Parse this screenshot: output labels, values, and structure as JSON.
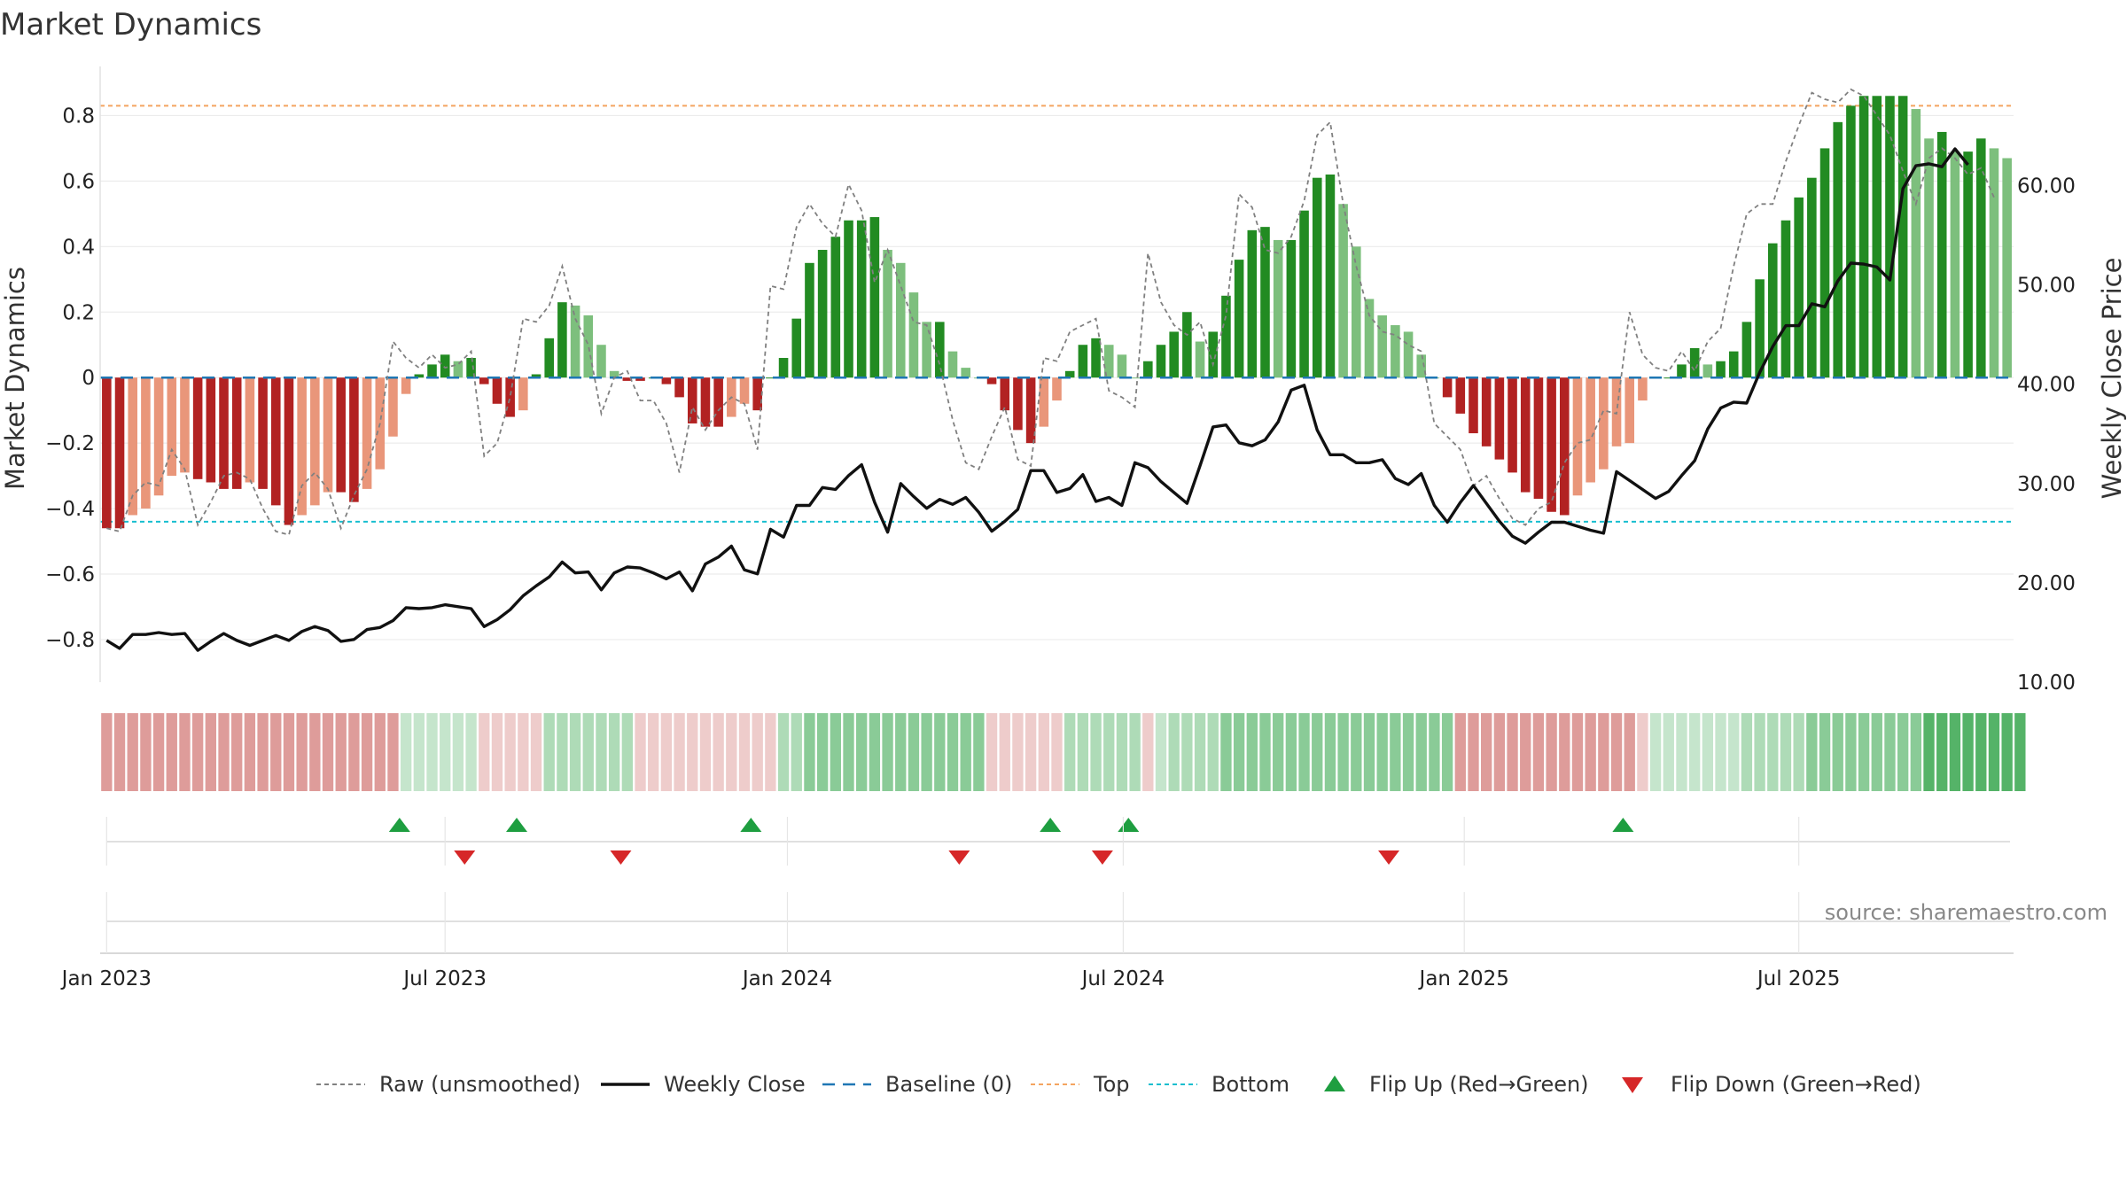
{
  "chart_data": {
    "type": "bar",
    "title": "Market Dynamics",
    "ylabel": "Market Dynamics",
    "ylabel_right": "Weekly Close Price",
    "ylim": [
      -0.93,
      0.95
    ],
    "ylim_right": [
      10,
      72
    ],
    "yticks": [
      -0.8,
      -0.6,
      -0.4,
      -0.2,
      0,
      0.2,
      0.4,
      0.6,
      0.8
    ],
    "ytick_labels": [
      "−0.8",
      "−0.6",
      "−0.4",
      "−0.2",
      "0",
      "0.2",
      "0.4",
      "0.6",
      "0.8"
    ],
    "yticks_right": [
      10,
      20,
      30,
      40,
      50,
      60
    ],
    "ytick_labels_right": [
      "10.00",
      "20.00",
      "30.00",
      "40.00",
      "50.00",
      "60.00"
    ],
    "x_tick_labels": [
      "Jan 2023",
      "Jul 2023",
      "Jan 2024",
      "Jul 2024",
      "Jan 2025",
      "Jul 2025"
    ],
    "x_tick_weeks": [
      0,
      26,
      52.3,
      78.1,
      104.3,
      130
    ],
    "top_level": 0.83,
    "bottom_level": -0.44,
    "baseline": 0,
    "smoothed": [
      -0.46,
      -0.46,
      -0.42,
      -0.4,
      -0.36,
      -0.3,
      -0.29,
      -0.31,
      -0.32,
      -0.34,
      -0.34,
      -0.32,
      -0.34,
      -0.39,
      -0.45,
      -0.42,
      -0.39,
      -0.35,
      -0.35,
      -0.38,
      -0.34,
      -0.28,
      -0.18,
      -0.05,
      0.01,
      0.04,
      0.07,
      0.05,
      0.06,
      -0.02,
      -0.08,
      -0.12,
      -0.1,
      0.01,
      0.12,
      0.23,
      0.22,
      0.19,
      0.1,
      0.02,
      -0.01,
      -0.01,
      0.0,
      -0.02,
      -0.06,
      -0.14,
      -0.15,
      -0.15,
      -0.12,
      -0.08,
      -0.1,
      0.0,
      0.06,
      0.18,
      0.35,
      0.39,
      0.43,
      0.48,
      0.48,
      0.49,
      0.39,
      0.35,
      0.26,
      0.17,
      0.17,
      0.08,
      0.03,
      0.0,
      -0.02,
      -0.1,
      -0.16,
      -0.2,
      -0.15,
      -0.07,
      0.02,
      0.1,
      0.12,
      0.1,
      0.07,
      0.0,
      0.05,
      0.1,
      0.14,
      0.2,
      0.11,
      0.14,
      0.25,
      0.36,
      0.45,
      0.46,
      0.42,
      0.42,
      0.51,
      0.61,
      0.62,
      0.53,
      0.4,
      0.24,
      0.19,
      0.16,
      0.14,
      0.07,
      0.0,
      -0.06,
      -0.11,
      -0.17,
      -0.21,
      -0.25,
      -0.29,
      -0.35,
      -0.37,
      -0.41,
      -0.42,
      -0.36,
      -0.32,
      -0.28,
      -0.21,
      -0.2,
      -0.07,
      0.0,
      0.0,
      0.04,
      0.09,
      0.04,
      0.05,
      0.08,
      0.17,
      0.3,
      0.41,
      0.48,
      0.55,
      0.61,
      0.7,
      0.78,
      0.83,
      0.86,
      0.86,
      0.86,
      0.86,
      0.82,
      0.73,
      0.75,
      0.69,
      0.69,
      0.73,
      0.7,
      0.67
    ],
    "raw": [
      -0.46,
      -0.47,
      -0.36,
      -0.32,
      -0.33,
      -0.22,
      -0.28,
      -0.45,
      -0.38,
      -0.3,
      -0.29,
      -0.31,
      -0.4,
      -0.47,
      -0.48,
      -0.33,
      -0.29,
      -0.34,
      -0.46,
      -0.36,
      -0.28,
      -0.14,
      0.11,
      0.06,
      0.03,
      0.07,
      0.03,
      0.04,
      0.08,
      -0.24,
      -0.2,
      -0.06,
      0.18,
      0.17,
      0.22,
      0.34,
      0.18,
      0.1,
      -0.11,
      0.0,
      0.02,
      -0.07,
      -0.07,
      -0.14,
      -0.29,
      -0.09,
      -0.16,
      -0.1,
      -0.06,
      -0.08,
      -0.22,
      0.28,
      0.27,
      0.46,
      0.53,
      0.47,
      0.43,
      0.59,
      0.51,
      0.29,
      0.39,
      0.28,
      0.17,
      0.16,
      0.04,
      -0.13,
      -0.26,
      -0.28,
      -0.18,
      -0.09,
      -0.25,
      -0.27,
      0.06,
      0.05,
      0.14,
      0.16,
      0.18,
      -0.04,
      -0.06,
      -0.09,
      0.38,
      0.23,
      0.16,
      0.13,
      0.17,
      0.04,
      0.19,
      0.56,
      0.52,
      0.39,
      0.38,
      0.43,
      0.54,
      0.74,
      0.78,
      0.53,
      0.34,
      0.19,
      0.14,
      0.13,
      0.1,
      0.08,
      -0.14,
      -0.18,
      -0.22,
      -0.33,
      -0.3,
      -0.37,
      -0.43,
      -0.45,
      -0.4,
      -0.38,
      -0.26,
      -0.2,
      -0.19,
      -0.1,
      -0.11,
      0.2,
      0.07,
      0.03,
      0.02,
      0.08,
      0.02,
      0.11,
      0.15,
      0.34,
      0.5,
      0.53,
      0.53,
      0.66,
      0.77,
      0.87,
      0.85,
      0.84,
      0.88,
      0.86,
      0.8,
      0.74,
      0.63,
      0.53,
      0.67,
      0.7,
      0.67,
      0.62,
      0.64,
      0.55
    ],
    "close": [
      14.2,
      13.4,
      14.8,
      14.8,
      15.0,
      14.8,
      14.9,
      13.2,
      14.1,
      14.9,
      14.2,
      13.7,
      14.2,
      14.7,
      14.2,
      15.1,
      15.6,
      15.2,
      14.1,
      14.3,
      15.3,
      15.5,
      16.2,
      17.5,
      17.4,
      17.5,
      17.8,
      17.6,
      17.4,
      15.6,
      16.3,
      17.3,
      18.7,
      19.7,
      20.6,
      22.1,
      21.0,
      21.1,
      19.3,
      21.0,
      21.6,
      21.5,
      21.0,
      20.4,
      21.1,
      19.2,
      21.9,
      22.6,
      23.7,
      21.3,
      20.9,
      25.4,
      24.6,
      27.8,
      27.8,
      29.6,
      29.4,
      30.8,
      31.9,
      28.1,
      25.1,
      30.0,
      28.7,
      27.5,
      28.4,
      27.9,
      28.6,
      27.1,
      25.2,
      26.2,
      27.4,
      31.3,
      31.3,
      29.1,
      29.5,
      30.9,
      28.2,
      28.6,
      27.8,
      32.1,
      31.6,
      30.2,
      29.1,
      28.0,
      31.8,
      35.7,
      35.9,
      34.1,
      33.8,
      34.4,
      36.2,
      39.4,
      39.9,
      35.4,
      32.9,
      32.9,
      32.1,
      32.1,
      32.4,
      30.5,
      29.9,
      31.0,
      27.8,
      26.1,
      28.1,
      29.8,
      28.0,
      26.2,
      24.7,
      24.0,
      25.1,
      26.1,
      26.1,
      25.7,
      25.3,
      25.0,
      31.2,
      30.3,
      29.4,
      28.5,
      29.2,
      30.8,
      32.3,
      35.5,
      37.6,
      38.2,
      38.1,
      41.2,
      43.8,
      45.9,
      45.9,
      48.1,
      47.8,
      50.4,
      52.2,
      52.1,
      51.8,
      50.5,
      59.7,
      62.0,
      62.2,
      61.9,
      63.7,
      62.1
    ],
    "regime": [
      -2,
      -2,
      -2,
      -2,
      -2,
      -2,
      -2,
      -2,
      -2,
      -2,
      -2,
      -2,
      -2,
      -2,
      -2,
      -2,
      -2,
      -2,
      -2,
      -2,
      -2,
      -2,
      -2,
      1,
      1,
      1,
      1,
      1,
      1,
      -1,
      -1,
      -1,
      -1,
      -1,
      2,
      2,
      2,
      2,
      2,
      2,
      2,
      -1,
      -1,
      -1,
      -1,
      -1,
      -1,
      -1,
      -1,
      -1,
      -1,
      -1,
      2,
      2,
      3,
      3,
      3,
      3,
      3,
      3,
      3,
      3,
      3,
      3,
      3,
      3,
      3,
      3,
      -1,
      -1,
      -1,
      -1,
      -1,
      -1,
      2,
      2,
      2,
      2,
      2,
      2,
      -1,
      1,
      2,
      2,
      2,
      2,
      3,
      3,
      3,
      3,
      3,
      3,
      3,
      3,
      3,
      3,
      3,
      3,
      3,
      3,
      3,
      3,
      3,
      3,
      -2,
      -2,
      -2,
      -2,
      -2,
      -2,
      -2,
      -2,
      -2,
      -2,
      -2,
      -2,
      -2,
      -2,
      -1,
      1,
      1,
      1,
      1,
      1,
      1,
      1,
      2,
      2,
      2,
      2,
      2,
      3,
      3,
      3,
      3,
      3,
      3,
      3,
      3,
      3,
      4,
      4,
      4,
      4,
      4,
      4,
      4,
      4
    ],
    "flip_up_weeks": [
      22.5,
      31.5,
      49.5,
      72.5,
      78.5,
      116.5
    ],
    "flip_down_weeks": [
      27.5,
      39.5,
      65.5,
      76.5,
      98.5
    ],
    "legend": [
      {
        "label": "Raw (unsmoothed)",
        "key": "raw"
      },
      {
        "label": "Weekly Close",
        "key": "close"
      },
      {
        "label": "Baseline (0)",
        "key": "baseline"
      },
      {
        "label": "Top",
        "key": "top"
      },
      {
        "label": "Bottom",
        "key": "bottom"
      },
      {
        "label": "Flip Up (Red→Green)",
        "key": "flip_up"
      },
      {
        "label": "Flip Down (Green→Red)",
        "key": "flip_down"
      }
    ],
    "legend_position": "bottom-center",
    "source_text": "source: sharemaestro.com",
    "colors": {
      "pos_strong": "#228b22",
      "pos_weak": "#7dbf7d",
      "neg_strong": "#b22222",
      "neg_weak": "#e9967a",
      "raw": "#808080",
      "close": "#111111",
      "baseline": "#1f77b4",
      "top": "#f4a460",
      "bottom": "#17becf",
      "flip_up": "#1e9e40",
      "flip_down": "#d62728",
      "regime_pos": "#4caf60",
      "regime_neg": "#c9605c"
    }
  }
}
